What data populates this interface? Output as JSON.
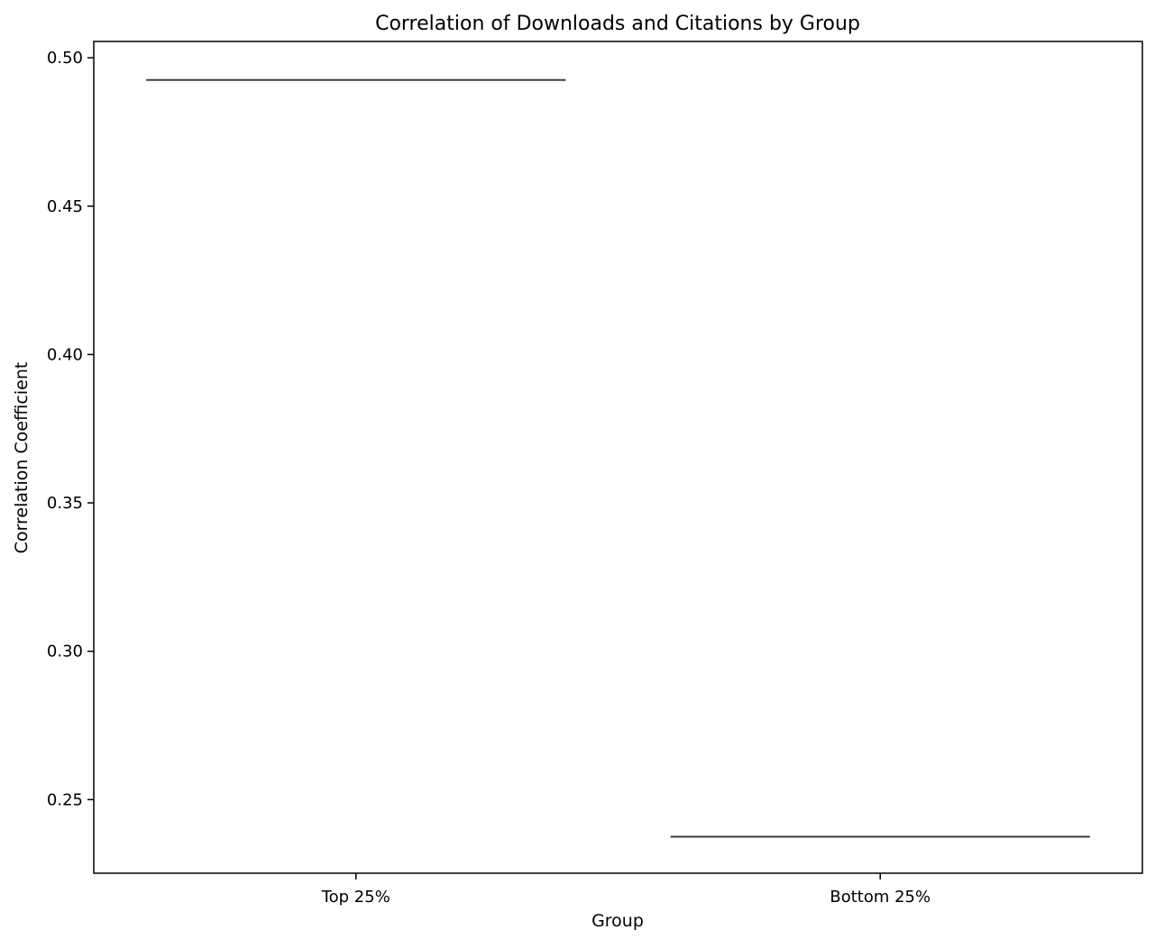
{
  "chart_data": {
    "type": "bar",
    "title": "Correlation of Downloads and Citations by Group",
    "xlabel": "Group",
    "ylabel": "Correlation Coefficient",
    "categories": [
      "Top 25%",
      "Bottom 25%"
    ],
    "values": [
      0.4925,
      0.2375
    ],
    "ylim": [
      0.2252,
      0.5055
    ],
    "yticks": [
      0.25,
      0.3,
      0.35,
      0.4,
      0.45,
      0.5
    ],
    "ytick_labels": [
      "0.25",
      "0.30",
      "0.35",
      "0.40",
      "0.45",
      "0.50"
    ],
    "grid": false,
    "legend": "none",
    "colors": {
      "axis": "#000000",
      "mark": "#3d3d3d",
      "background": "#ffffff"
    }
  }
}
